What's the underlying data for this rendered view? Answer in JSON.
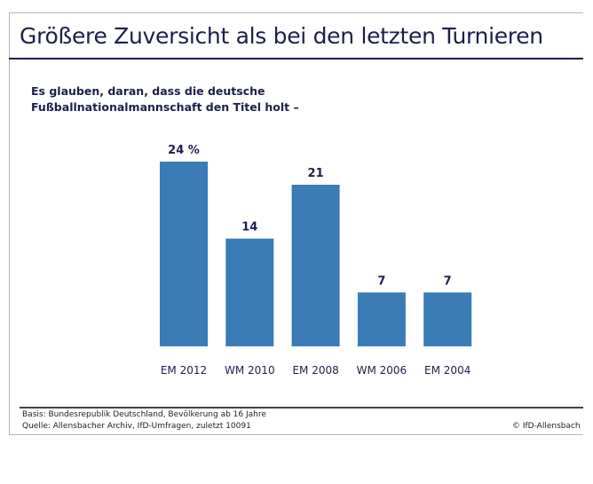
{
  "title": "Größere Zuversicht als bei den letzten Turnieren",
  "subtitle_line1": "Es glauben, daran, dass die deutsche",
  "subtitle_line2": "Fußballnationalmannschaft den Titel holt –",
  "footer": {
    "basis": "Basis: Bundesrepublik Deutschland, Bevölkerung ab 16 Jahre",
    "quelle": "Quelle: Allensbacher Archiv, IfD-Umfragen, zuletzt 10091",
    "copyright": "© IfD-Allensbach"
  },
  "chart_data": {
    "type": "bar",
    "categories": [
      "EM 2012",
      "WM 2010",
      "EM 2008",
      "WM 2006",
      "EM 2004"
    ],
    "values": [
      24,
      14,
      21,
      7,
      7
    ],
    "data_labels": [
      "24 %",
      "14",
      "21",
      "7",
      "7"
    ],
    "unit": "%",
    "ylim": [
      0,
      24
    ],
    "grid": false,
    "bar_color": "#3b7bb6",
    "text_color": "#1b1f4b"
  }
}
